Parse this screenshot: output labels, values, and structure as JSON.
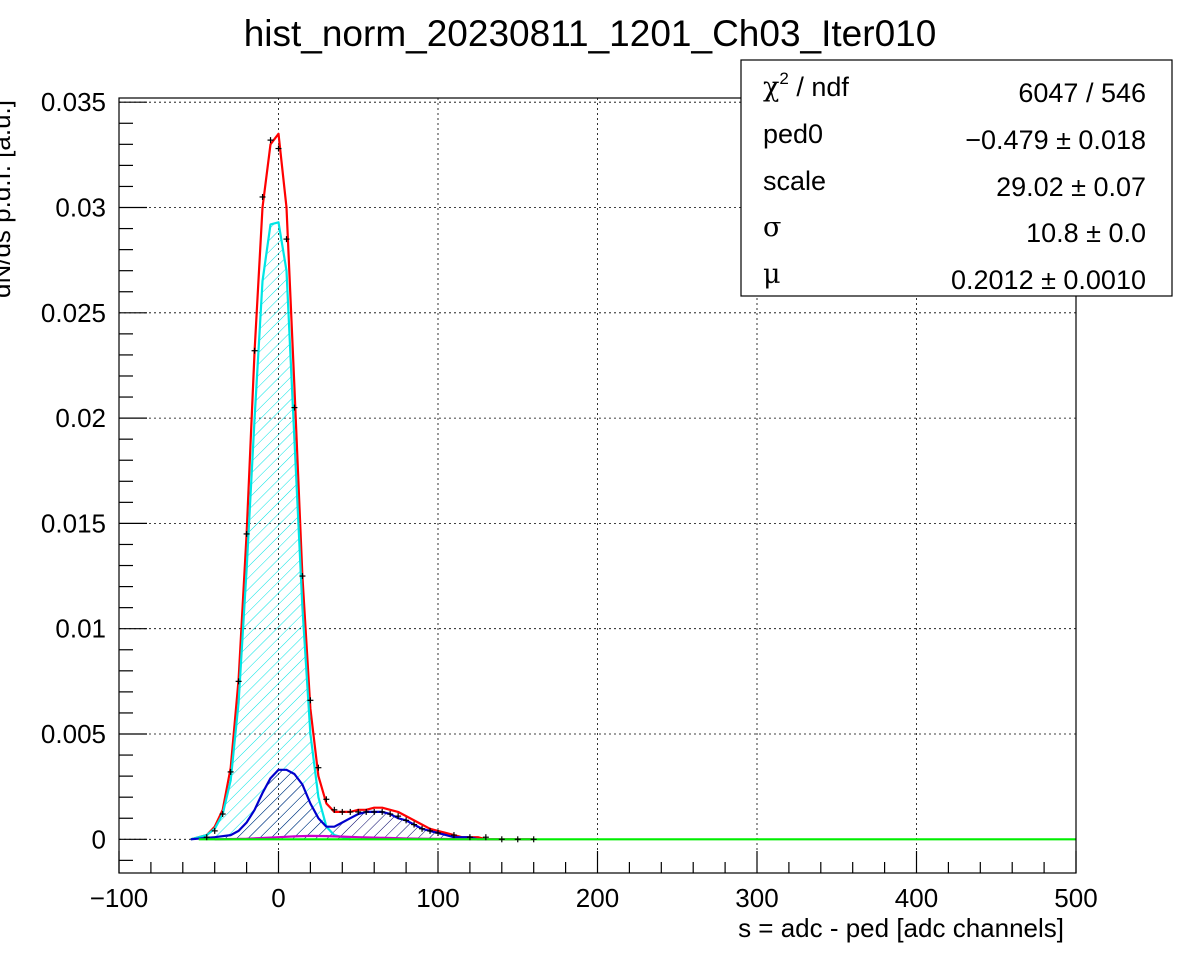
{
  "chart_data": {
    "type": "line",
    "title": "hist_norm_20230811_1201_Ch03_Iter010",
    "xlabel": "s = adc - ped [adc channels]",
    "ylabel": "dN/ds p.d.f. [a.u.]",
    "xlim": [
      -100,
      500
    ],
    "ylim": [
      -0.0016,
      0.0352
    ],
    "grid": true,
    "x_ticks": [
      -100,
      0,
      100,
      200,
      300,
      400,
      500
    ],
    "x_tick_labels": [
      "−100",
      "0",
      "100",
      "200",
      "300",
      "400",
      "500"
    ],
    "y_ticks": [
      0,
      0.005,
      0.01,
      0.015,
      0.02,
      0.025,
      0.03,
      0.035
    ],
    "y_tick_labels": [
      "0",
      "0.005",
      "0.01",
      "0.015",
      "0.02",
      "0.025",
      "0.03",
      "0.035"
    ],
    "series": [
      {
        "color": "#000000",
        "style": "data-points",
        "x": [
          -45,
          -40,
          -35,
          -30,
          -25,
          -20,
          -15,
          -10,
          -5,
          0,
          5,
          10,
          15,
          20,
          25,
          30,
          35,
          40,
          45,
          50,
          55,
          60,
          65,
          70,
          75,
          80,
          85,
          90,
          95,
          100,
          110,
          120,
          130,
          140,
          150,
          160
        ],
        "y": [
          0.0001,
          0.0004,
          0.0012,
          0.0032,
          0.0075,
          0.0145,
          0.0232,
          0.0305,
          0.0332,
          0.0328,
          0.0285,
          0.0205,
          0.0125,
          0.0066,
          0.0034,
          0.0019,
          0.0014,
          0.0013,
          0.0013,
          0.0013,
          0.0013,
          0.0013,
          0.0013,
          0.0012,
          0.0011,
          0.0009,
          0.0007,
          0.0005,
          0.0004,
          0.0003,
          0.0002,
          0.0001,
          0.0001,
          0.0,
          0.0,
          0.0
        ]
      },
      {
        "color": "#ff0000",
        "style": "line",
        "x": [
          -55,
          -50,
          -45,
          -40,
          -35,
          -30,
          -25,
          -20,
          -15,
          -10,
          -5,
          0,
          5,
          10,
          15,
          20,
          25,
          30,
          35,
          40,
          45,
          50,
          55,
          60,
          65,
          70,
          75,
          80,
          85,
          90,
          95,
          100,
          105,
          110,
          115,
          120,
          125,
          130,
          140,
          150,
          160
        ],
        "y": [
          0.0,
          0.0001,
          0.0002,
          0.0006,
          0.0014,
          0.0034,
          0.0076,
          0.0145,
          0.0232,
          0.03,
          0.033,
          0.0335,
          0.03,
          0.0215,
          0.0125,
          0.0062,
          0.003,
          0.0017,
          0.0013,
          0.0013,
          0.0013,
          0.0014,
          0.0014,
          0.0015,
          0.0015,
          0.0014,
          0.0013,
          0.0011,
          0.0009,
          0.0007,
          0.0005,
          0.0004,
          0.0003,
          0.0002,
          0.0001,
          0.0001,
          0.0001,
          0.0,
          0.0,
          0.0,
          0.0
        ]
      },
      {
        "color": "#00e5e5",
        "style": "filled-line",
        "x": [
          -55,
          -50,
          -45,
          -40,
          -35,
          -30,
          -25,
          -20,
          -15,
          -10,
          -5,
          0,
          5,
          10,
          15,
          20,
          25,
          30,
          35,
          40,
          45
        ],
        "y": [
          0.0,
          0.0001,
          0.0002,
          0.0005,
          0.0012,
          0.0028,
          0.0065,
          0.0128,
          0.02,
          0.0265,
          0.0292,
          0.0293,
          0.027,
          0.019,
          0.011,
          0.005,
          0.002,
          0.0006,
          0.0002,
          0.0001,
          0.0
        ]
      },
      {
        "color": "#0000cc",
        "style": "filled-line",
        "x": [
          -55,
          -40,
          -30,
          -25,
          -20,
          -15,
          -10,
          -5,
          0,
          5,
          10,
          15,
          20,
          25,
          30,
          35,
          40,
          45,
          50,
          55,
          60,
          65,
          70,
          75,
          80,
          85,
          90,
          95,
          100,
          105,
          110,
          115,
          120,
          125,
          130
        ],
        "y": [
          0.0,
          0.0001,
          0.0002,
          0.0004,
          0.0008,
          0.0014,
          0.0022,
          0.0029,
          0.0033,
          0.0033,
          0.0031,
          0.0026,
          0.0017,
          0.001,
          0.0006,
          0.0006,
          0.0008,
          0.001,
          0.0012,
          0.0013,
          0.0013,
          0.0013,
          0.0012,
          0.001,
          0.0009,
          0.0007,
          0.0005,
          0.0004,
          0.0003,
          0.0002,
          0.0001,
          0.0001,
          0.0001,
          0.0,
          0.0
        ]
      },
      {
        "color": "#cc00cc",
        "style": "line",
        "x": [
          -40,
          -20,
          0,
          10,
          20,
          30,
          40,
          50,
          60,
          70,
          80,
          90,
          100,
          110,
          130,
          160
        ],
        "y": [
          0.0,
          3e-05,
          0.0001,
          0.00014,
          0.00016,
          0.00015,
          0.00013,
          0.0001,
          8e-05,
          6e-05,
          4e-05,
          3e-05,
          2e-05,
          1e-05,
          0.0,
          0.0
        ]
      },
      {
        "color": "#00ee00",
        "style": "line",
        "x": [
          -50,
          500
        ],
        "y": [
          0.0,
          0.0
        ]
      }
    ],
    "stats_box": {
      "rows": [
        {
          "label_sym": "χ",
          "label_sup": "2",
          "label_rest": " / ndf",
          "value": "6047 / 546"
        },
        {
          "label_sym": "",
          "label_sup": "",
          "label_rest": "ped0",
          "value": "−0.479 ± 0.018"
        },
        {
          "label_sym": "",
          "label_sup": "",
          "label_rest": "scale",
          "value": "29.02 ± 0.07"
        },
        {
          "label_sym": "σ",
          "label_sup": "",
          "label_rest": "",
          "value": "10.8 ± 0.0"
        },
        {
          "label_sym": "μ",
          "label_sup": "",
          "label_rest": "",
          "value": "0.2012 ± 0.0010"
        }
      ]
    }
  }
}
